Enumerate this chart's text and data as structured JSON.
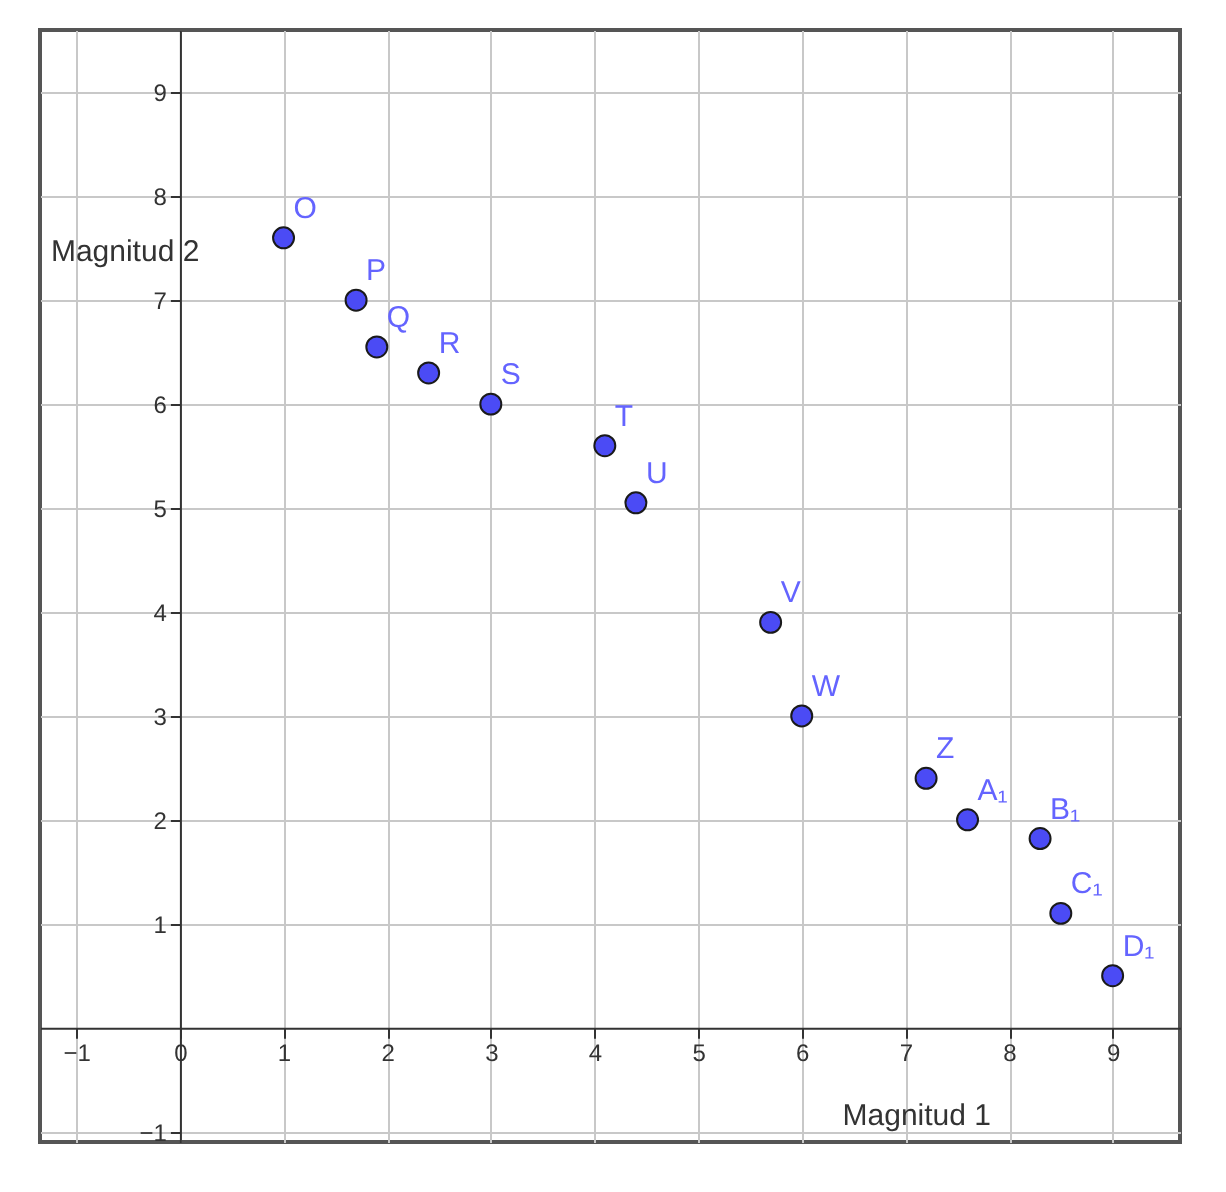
{
  "chart_data": {
    "type": "scatter",
    "xlabel": "Magnitud 1",
    "ylabel": "Magnitud 2",
    "x": [
      1.0,
      1.7,
      1.9,
      2.4,
      3.0,
      4.1,
      4.4,
      5.7,
      6.0,
      7.2,
      7.6,
      8.3,
      8.5,
      9.0
    ],
    "series": [
      {
        "color": "#4b4bf5",
        "values": [
          7.6,
          7.0,
          6.55,
          6.3,
          6.0,
          5.6,
          5.05,
          3.9,
          3.0,
          2.4,
          2.0,
          1.82,
          1.1,
          0.5
        ]
      }
    ],
    "annotations": [
      {
        "text": "O",
        "x": 1.0,
        "y": 7.6
      },
      {
        "text": "P",
        "x": 1.7,
        "y": 7.0
      },
      {
        "text": "Q",
        "x": 1.9,
        "y": 6.55
      },
      {
        "text": "R",
        "x": 2.4,
        "y": 6.3
      },
      {
        "text": "S",
        "x": 3.0,
        "y": 6.0
      },
      {
        "text": "T",
        "x": 4.1,
        "y": 5.6
      },
      {
        "text": "U",
        "x": 4.4,
        "y": 5.05
      },
      {
        "text": "V",
        "x": 5.7,
        "y": 3.9
      },
      {
        "text": "W",
        "x": 6.0,
        "y": 3.0
      },
      {
        "text": "Z",
        "x": 7.2,
        "y": 2.4
      },
      {
        "text": "A₁",
        "x": 7.6,
        "y": 2.0
      },
      {
        "text": "B₁",
        "x": 8.3,
        "y": 1.82
      },
      {
        "text": "C₁",
        "x": 8.5,
        "y": 1.1
      },
      {
        "text": "D₁",
        "x": 9.0,
        "y": 0.5
      }
    ],
    "xlim": [
      -1.35,
      9.65
    ],
    "ylim": [
      -1.1,
      9.6
    ],
    "xticks": [
      -1,
      0,
      1,
      2,
      3,
      4,
      5,
      6,
      7,
      8,
      9
    ],
    "yticks": [
      -1,
      1,
      2,
      3,
      4,
      5,
      6,
      7,
      8,
      9
    ],
    "grid": true,
    "marker": "circle"
  }
}
